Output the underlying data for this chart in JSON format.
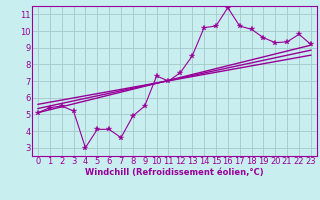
{
  "xlabel": "Windchill (Refroidissement éolien,°C)",
  "bg_color": "#c8eef0",
  "line_color": "#990099",
  "grid_color": "#aacccc",
  "x_data": [
    0,
    1,
    2,
    3,
    4,
    5,
    6,
    7,
    8,
    9,
    10,
    11,
    12,
    13,
    14,
    15,
    16,
    17,
    18,
    19,
    20,
    21,
    22,
    23
  ],
  "y_data": [
    5.1,
    5.4,
    5.5,
    5.2,
    3.0,
    4.1,
    4.1,
    3.6,
    4.9,
    5.5,
    7.3,
    7.0,
    7.5,
    8.5,
    10.2,
    10.3,
    11.4,
    10.3,
    10.1,
    9.6,
    9.3,
    9.35,
    9.8,
    9.2
  ],
  "reg_line1_x": [
    0,
    23
  ],
  "reg_line1_y": [
    5.1,
    9.15
  ],
  "reg_line2_x": [
    0,
    23
  ],
  "reg_line2_y": [
    5.35,
    8.85
  ],
  "reg_line3_x": [
    0,
    23
  ],
  "reg_line3_y": [
    5.6,
    8.55
  ],
  "xlim": [
    -0.5,
    23.5
  ],
  "ylim": [
    2.5,
    11.5
  ],
  "xticks": [
    0,
    1,
    2,
    3,
    4,
    5,
    6,
    7,
    8,
    9,
    10,
    11,
    12,
    13,
    14,
    15,
    16,
    17,
    18,
    19,
    20,
    21,
    22,
    23
  ],
  "yticks": [
    3,
    4,
    5,
    6,
    7,
    8,
    9,
    10,
    11
  ],
  "tick_fontsize": 6,
  "xlabel_fontsize": 6
}
